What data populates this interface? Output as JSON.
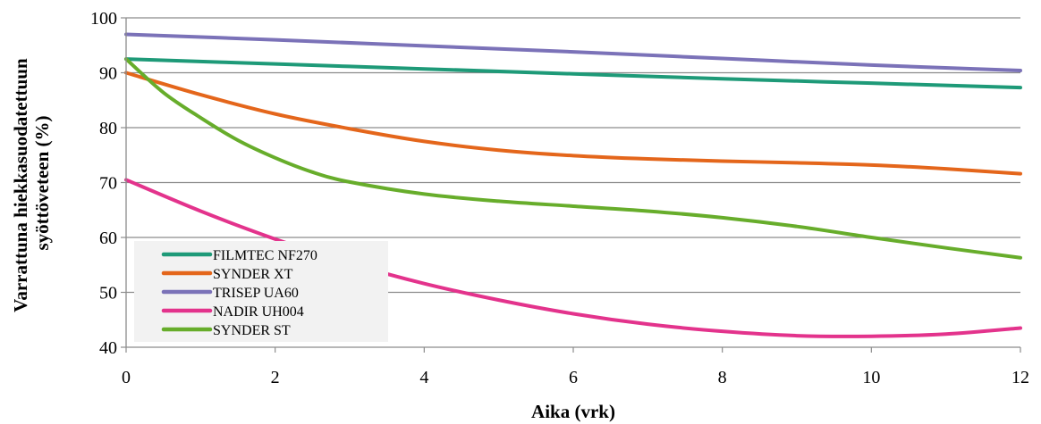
{
  "chart_data": {
    "type": "line",
    "title": "",
    "xlabel": "Aika (vrk)",
    "ylabel_lines": [
      "Varrattuna hiekkasuodatettuun",
      "syöttöveteen (%)"
    ],
    "xlim": [
      0,
      12
    ],
    "ylim": [
      40,
      100
    ],
    "xticks": [
      0,
      2,
      4,
      6,
      8,
      10,
      12
    ],
    "yticks": [
      40,
      50,
      60,
      70,
      80,
      90,
      100
    ],
    "grid": "horizontal",
    "legend_position": "bottom-left",
    "series": [
      {
        "name": "FILMTEC NF270",
        "color": "#1e9a78",
        "x": [
          0,
          2,
          4,
          6,
          8,
          10,
          12
        ],
        "y": [
          92.5,
          91.6,
          90.7,
          89.8,
          88.9,
          88.1,
          87.3
        ]
      },
      {
        "name": "SYNDER XT",
        "color": "#e4661b",
        "x": [
          0,
          1,
          2,
          3,
          4,
          5,
          6,
          7,
          8,
          9,
          10,
          11,
          12
        ],
        "y": [
          90,
          86,
          82.5,
          79.8,
          77.5,
          75.9,
          74.9,
          74.3,
          73.9,
          73.6,
          73.2,
          72.5,
          71.6
        ]
      },
      {
        "name": "TRISEP UA60",
        "color": "#7b72b8",
        "x": [
          0,
          2,
          4,
          6,
          8,
          10,
          12
        ],
        "y": [
          97,
          96,
          94.9,
          93.8,
          92.6,
          91.4,
          90.4
        ]
      },
      {
        "name": "NADIR UH004",
        "color": "#e3338c",
        "x": [
          0,
          1,
          2,
          3,
          4,
          5,
          6,
          7,
          8,
          9,
          10,
          11,
          12
        ],
        "y": [
          70.5,
          64.8,
          59.7,
          55.3,
          51.6,
          48.6,
          46.1,
          44.2,
          42.9,
          42.1,
          42.0,
          42.4,
          43.5
        ]
      },
      {
        "name": "SYNDER ST",
        "color": "#67ad2b",
        "x": [
          0,
          0.5,
          1,
          1.5,
          2,
          2.5,
          3,
          4,
          5,
          6,
          7,
          8,
          9,
          10,
          11,
          12
        ],
        "y": [
          92.5,
          86.4,
          81.8,
          77.7,
          74.5,
          71.9,
          70.1,
          67.9,
          66.6,
          65.7,
          64.8,
          63.6,
          62,
          60,
          58.1,
          56.3
        ]
      }
    ]
  }
}
